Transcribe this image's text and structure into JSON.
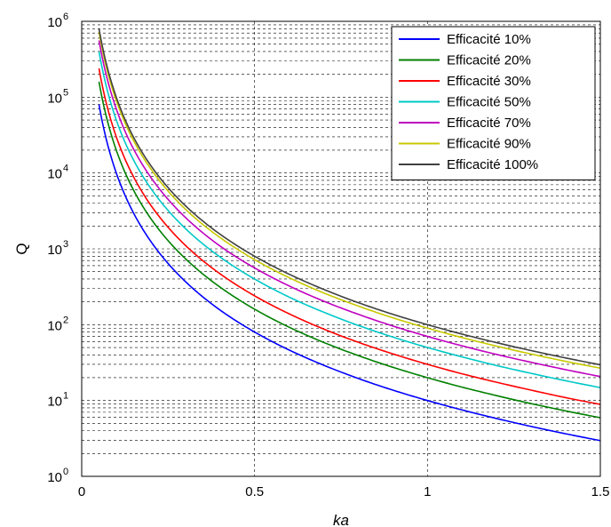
{
  "chart_data": {
    "type": "line",
    "xlabel": "ka",
    "ylabel": "Q",
    "xlim": [
      0,
      1.5
    ],
    "ylim": [
      1,
      1000000
    ],
    "y_scale": "log",
    "grid": true,
    "legend_position": "top-right",
    "x_ticks": [
      "0",
      "0.5",
      "1",
      "1.5"
    ],
    "y_ticks": [
      {
        "base": "10",
        "exp": "0"
      },
      {
        "base": "10",
        "exp": "1"
      },
      {
        "base": "10",
        "exp": "2"
      },
      {
        "base": "10",
        "exp": "3"
      },
      {
        "base": "10",
        "exp": "4"
      },
      {
        "base": "10",
        "exp": "5"
      },
      {
        "base": "10",
        "exp": "6"
      }
    ],
    "x": [
      0.05,
      0.1,
      0.15,
      0.2,
      0.25,
      0.3,
      0.4,
      0.5,
      0.6,
      0.7,
      0.8,
      0.9,
      1.0,
      1.1,
      1.2,
      1.3,
      1.4,
      1.5
    ],
    "series": [
      {
        "name": "Efficacité 10%",
        "color": "#0000ff",
        "values": [
          80000,
          10000,
          2960,
          1250,
          640,
          370,
          156,
          80,
          46.3,
          29.2,
          19.5,
          13.7,
          10,
          7.51,
          5.79,
          4.55,
          3.64,
          2.96
        ]
      },
      {
        "name": "Efficacité 20%",
        "color": "#008000",
        "values": [
          160000,
          20000,
          5930,
          2500,
          1280,
          741,
          313,
          160,
          92.6,
          58.3,
          39.1,
          27.4,
          20,
          15,
          11.6,
          9.1,
          7.29,
          5.93
        ]
      },
      {
        "name": "Efficacité 30%",
        "color": "#ff0000",
        "values": [
          240000,
          30000,
          8890,
          3750,
          1920,
          1110,
          469,
          240,
          139,
          87.5,
          58.6,
          41.2,
          30,
          22.5,
          17.4,
          13.7,
          10.9,
          8.89
        ]
      },
      {
        "name": "Efficacité 50%",
        "color": "#00c8c8",
        "values": [
          400000,
          50000,
          14800,
          6250,
          3200,
          1850,
          781,
          400,
          231,
          146,
          97.7,
          68.6,
          50,
          37.6,
          28.9,
          22.8,
          18.2,
          14.8
        ]
      },
      {
        "name": "Efficacité 70%",
        "color": "#c000c0",
        "values": [
          560000,
          70000,
          20700,
          8750,
          4480,
          2590,
          1090,
          560,
          324,
          204,
          137,
          96,
          70,
          52.6,
          40.5,
          31.9,
          25.5,
          20.7
        ]
      },
      {
        "name": "Efficacité 90%",
        "color": "#c8c800",
        "values": [
          720000,
          90000,
          26700,
          11300,
          5760,
          3330,
          1410,
          720,
          417,
          262,
          176,
          123,
          90,
          67.6,
          52.1,
          41,
          32.8,
          26.7
        ]
      },
      {
        "name": "Efficacité 100%",
        "color": "#404040",
        "values": [
          800000,
          100000,
          29600,
          12500,
          6400,
          3700,
          1560,
          800,
          463,
          292,
          195,
          137,
          100,
          75.1,
          57.9,
          45.5,
          36.4,
          29.6
        ]
      }
    ]
  }
}
